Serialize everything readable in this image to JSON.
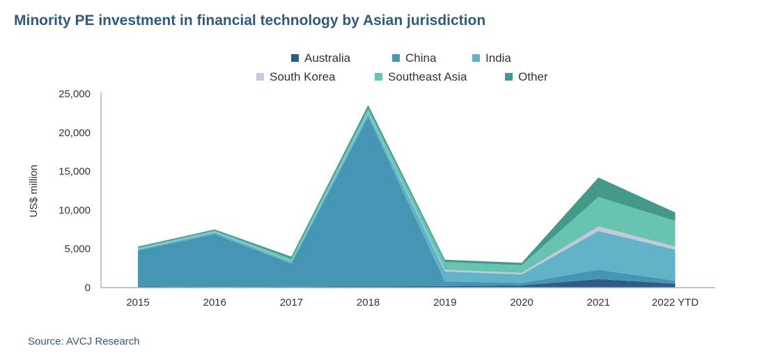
{
  "title": "Minority PE investment in financial technology by Asian jurisdiction",
  "source": "Source: AVCJ Research",
  "chart_data": {
    "type": "area",
    "stacked": true,
    "categories": [
      "2015",
      "2016",
      "2017",
      "2018",
      "2019",
      "2020",
      "2021",
      "2022 YTD"
    ],
    "ylabel": "US$ million",
    "xlabel": "",
    "ylim": [
      0,
      25000
    ],
    "yticks": [
      0,
      5000,
      10000,
      15000,
      20000,
      25000
    ],
    "ytick_labels": [
      "0",
      "5,000",
      "10,000",
      "15,000",
      "20,000",
      "25,000"
    ],
    "grid": false,
    "legend_position": "top-center",
    "series": [
      {
        "name": "Australia",
        "color": "#2e5c86",
        "values": [
          150,
          50,
          100,
          150,
          200,
          300,
          1100,
          500
        ]
      },
      {
        "name": "China",
        "color": "#4596b5",
        "values": [
          4650,
          6850,
          3000,
          21900,
          600,
          300,
          1200,
          400
        ]
      },
      {
        "name": "India",
        "color": "#62b3c8",
        "values": [
          100,
          250,
          250,
          450,
          1300,
          1100,
          5000,
          4000
        ]
      },
      {
        "name": "South Korea",
        "color": "#c4c8d8",
        "values": [
          50,
          50,
          50,
          100,
          200,
          200,
          600,
          400
        ]
      },
      {
        "name": "Southeast Asia",
        "color": "#66c4b0",
        "values": [
          200,
          150,
          300,
          500,
          1000,
          1000,
          3800,
          3300
        ]
      },
      {
        "name": "Other",
        "color": "#45998a",
        "values": [
          150,
          150,
          300,
          450,
          300,
          300,
          2500,
          1100
        ]
      }
    ]
  }
}
